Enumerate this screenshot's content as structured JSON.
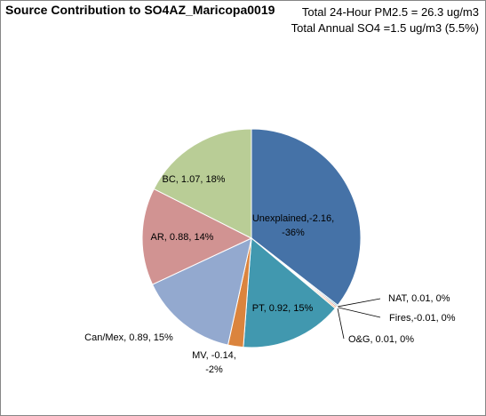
{
  "chart_data": {
    "type": "pie",
    "title": "Source Contribution to SO4AZ_Maricopa0019",
    "subtitle_lines": [
      "Total 24-Hour PM2.5 = 26.3 ug/m3",
      "Total Annual SO4 =1.5 ug/m3 (5.5%)"
    ],
    "slices": [
      {
        "name": "Unexplained",
        "label_lines": [
          "Unexplained,-2.16,",
          "-36%"
        ],
        "value": -2.16,
        "percent": -36,
        "share": 0.36,
        "color": "#4572a7"
      },
      {
        "name": "NAT",
        "label_lines": [
          "NAT,  0.01, 0%"
        ],
        "value": 0.01,
        "percent": 0,
        "share": 0.002,
        "color": "#4bacc6"
      },
      {
        "name": "Fires",
        "label_lines": [
          "Fires,-0.01, 0%"
        ],
        "value": -0.01,
        "percent": 0,
        "share": 0.002,
        "color": "#c0504d"
      },
      {
        "name": "O&G",
        "label_lines": [
          "O&G, 0.01, 0%"
        ],
        "value": 0.01,
        "percent": 0,
        "share": 0.002,
        "color": "#f79646"
      },
      {
        "name": "PT",
        "label_lines": [
          "PT, 0.92, 15%"
        ],
        "value": 0.92,
        "percent": 15,
        "share": 0.153,
        "color": "#4198af"
      },
      {
        "name": "MV",
        "label_lines": [
          "MV, -0.14,",
          "-2%"
        ],
        "value": -0.14,
        "percent": -2,
        "share": 0.023,
        "color": "#db843d"
      },
      {
        "name": "Can/Mex",
        "label_lines": [
          "Can/Mex, 0.89, 15%"
        ],
        "value": 0.89,
        "percent": 15,
        "share": 0.148,
        "color": "#93a9cf"
      },
      {
        "name": "AR",
        "label_lines": [
          "AR,  0.88, 14%"
        ],
        "value": 0.88,
        "percent": 14,
        "share": 0.146,
        "color": "#d19392"
      },
      {
        "name": "BC",
        "label_lines": [
          "BC, 1.07, 18%"
        ],
        "value": 1.07,
        "percent": 18,
        "share": 0.178,
        "color": "#b9cd96"
      }
    ]
  }
}
